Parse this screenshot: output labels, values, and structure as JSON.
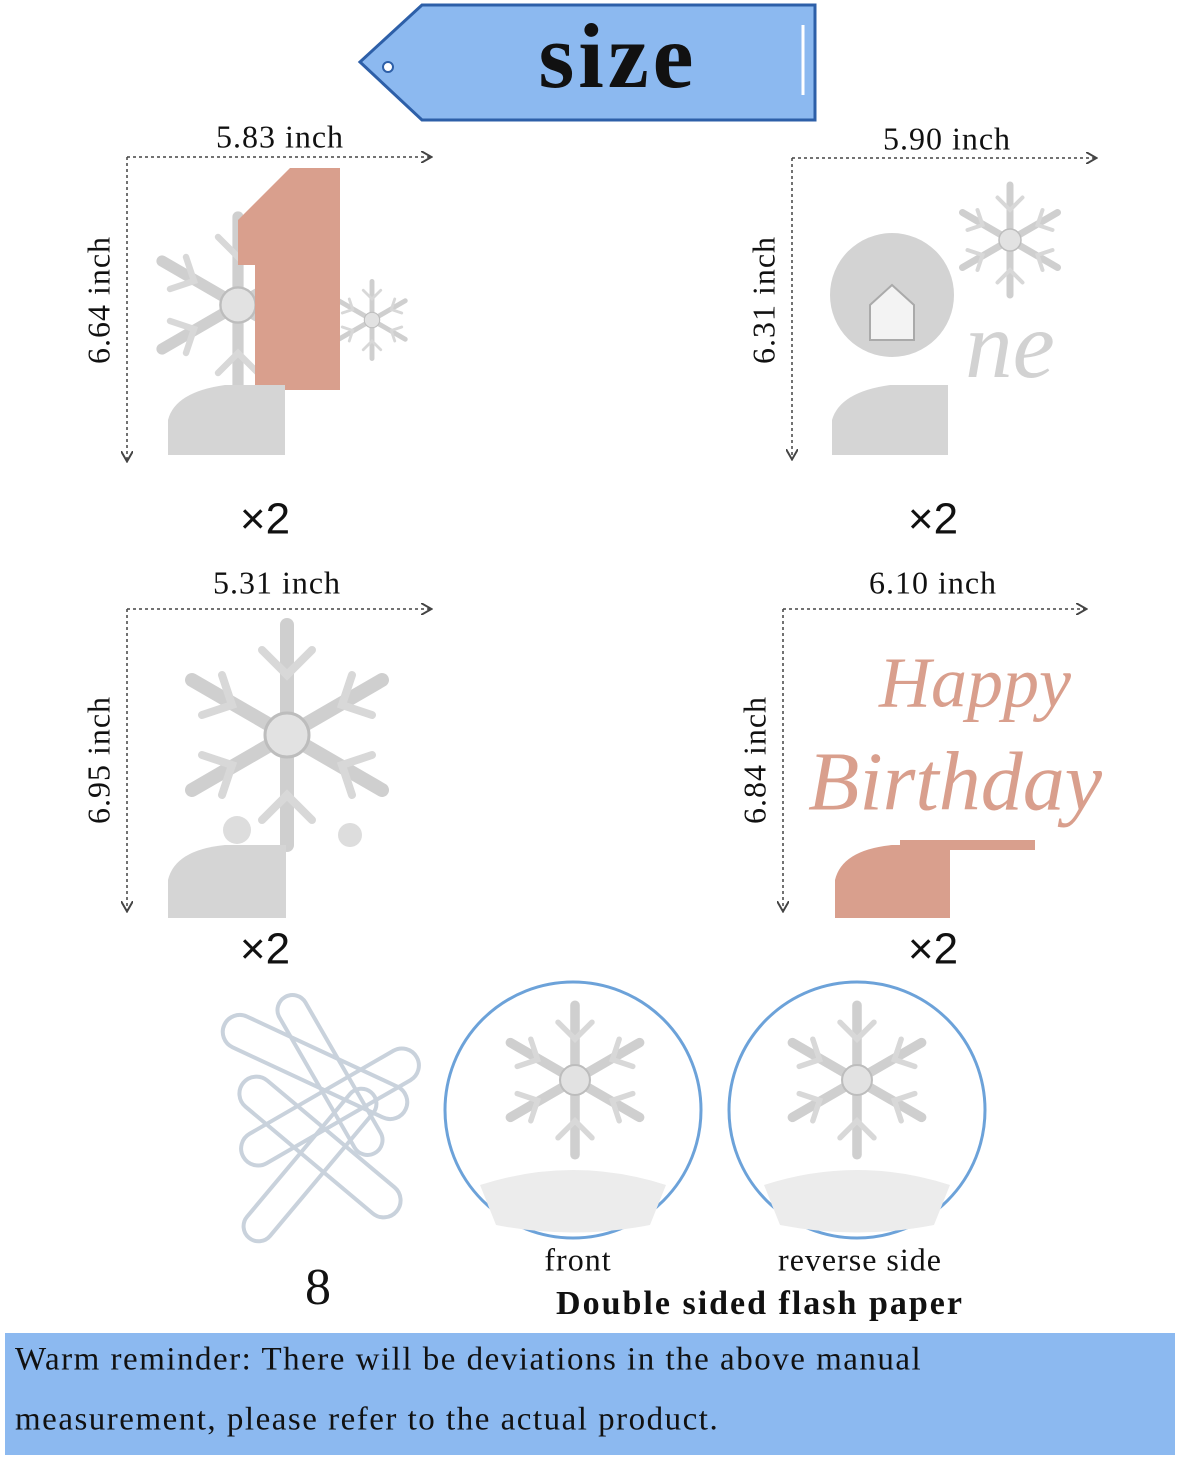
{
  "header": {
    "title": "size"
  },
  "items": [
    {
      "width": "5.83 inch",
      "height": "6.64 inch",
      "quantity": "×2"
    },
    {
      "width": "5.90 inch",
      "height": "6.31 inch",
      "quantity": "×2"
    },
    {
      "width": "5.31 inch",
      "height": "6.95 inch",
      "quantity": "×2"
    },
    {
      "width": "6.10 inch",
      "height": "6.84 inch",
      "quantity": "×2"
    }
  ],
  "accessories": {
    "count": "8"
  },
  "sides": {
    "front": "front",
    "reverse": "reverse side",
    "caption": "Double sided flash paper"
  },
  "reminder": {
    "lines": [
      "Warm reminder: There will be deviations in the above manual",
      "measurement, please refer to the actual product."
    ]
  }
}
